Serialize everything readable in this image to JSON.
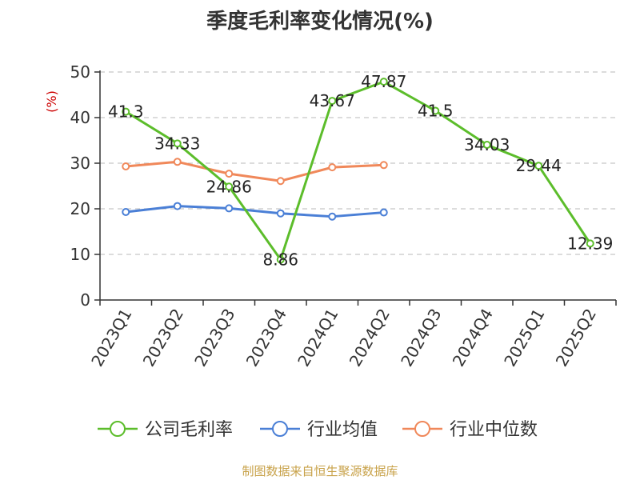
{
  "chart_data": {
    "type": "line",
    "title": "季度毛利率变化情况(%)",
    "ylabel": "(%)",
    "xlabel": "",
    "ylim": [
      0,
      50
    ],
    "yticks": [
      0,
      10,
      20,
      30,
      40,
      50
    ],
    "grid": true,
    "legend_position": "bottom",
    "categories": [
      "2023Q1",
      "2023Q2",
      "2023Q3",
      "2023Q4",
      "2024Q1",
      "2024Q2",
      "2024Q3",
      "2024Q4",
      "2025Q1",
      "2025Q2"
    ],
    "series": [
      {
        "name": "公司毛利率",
        "color": "#5cbd2b",
        "values": [
          41.3,
          34.33,
          24.86,
          8.86,
          43.67,
          47.87,
          41.5,
          34.03,
          29.44,
          12.39
        ],
        "labels": [
          "41.3",
          "34.33",
          "24.86",
          "8.86",
          "43.67",
          "47.87",
          "41.5",
          "34.03",
          "29.44",
          "12.39"
        ]
      },
      {
        "name": "行业均值",
        "color": "#4a7fd6",
        "values": [
          19.3,
          20.6,
          20.1,
          19.0,
          18.3,
          19.2,
          null,
          null,
          null,
          null
        ]
      },
      {
        "name": "行业中位数",
        "color": "#f0885a",
        "values": [
          29.3,
          30.3,
          27.7,
          26.1,
          29.1,
          29.6,
          null,
          null,
          null,
          null
        ]
      }
    ]
  },
  "source": "制图数据来自恒生聚源数据库"
}
